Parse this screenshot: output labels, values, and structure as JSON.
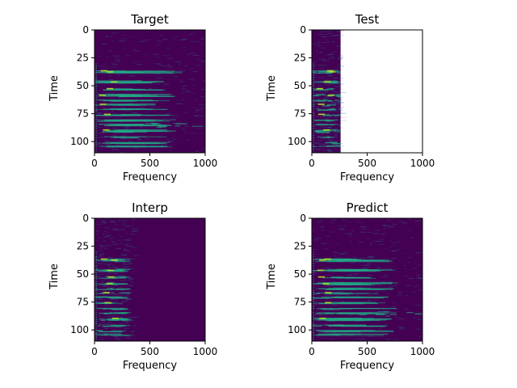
{
  "chart_data": [
    {
      "type": "heatmap",
      "title": "Target",
      "xlabel": "Frequency",
      "ylabel": "Time",
      "xlim": [
        0,
        1000
      ],
      "ylim": [
        110,
        0
      ],
      "xticks": [
        "0",
        "500",
        "1000"
      ],
      "yticks": [
        "0",
        "25",
        "50",
        "75",
        "100"
      ],
      "visible_x_range": [
        0,
        1000
      ],
      "colormap": "viridis"
    },
    {
      "type": "heatmap",
      "title": "Test",
      "xlabel": "Frequency",
      "ylabel": "Time",
      "xlim": [
        0,
        1000
      ],
      "ylim": [
        110,
        0
      ],
      "xticks": [
        "0",
        "500",
        "1000"
      ],
      "yticks": [
        "0",
        "25",
        "50",
        "75",
        "100"
      ],
      "visible_x_range": [
        0,
        260
      ],
      "colormap": "viridis"
    },
    {
      "type": "heatmap",
      "title": "Interp",
      "xlabel": "Frequency",
      "ylabel": "Time",
      "xlim": [
        0,
        1000
      ],
      "ylim": [
        110,
        0
      ],
      "xticks": [
        "0",
        "500",
        "1000"
      ],
      "yticks": [
        "0",
        "25",
        "50",
        "75",
        "100"
      ],
      "visible_x_range": [
        0,
        1000
      ],
      "colormap": "viridis"
    },
    {
      "type": "heatmap",
      "title": "Predict",
      "xlabel": "Frequency",
      "ylabel": "Time",
      "xlim": [
        0,
        1000
      ],
      "ylim": [
        110,
        0
      ],
      "xticks": [
        "0",
        "500",
        "1000"
      ],
      "yticks": [
        "0",
        "25",
        "50",
        "75",
        "100"
      ],
      "visible_x_range": [
        0,
        1000
      ],
      "colormap": "viridis"
    }
  ],
  "colors": {
    "background": "#440154",
    "mid": "#2a788e",
    "high": "#22a884",
    "peak": "#bddf26"
  }
}
